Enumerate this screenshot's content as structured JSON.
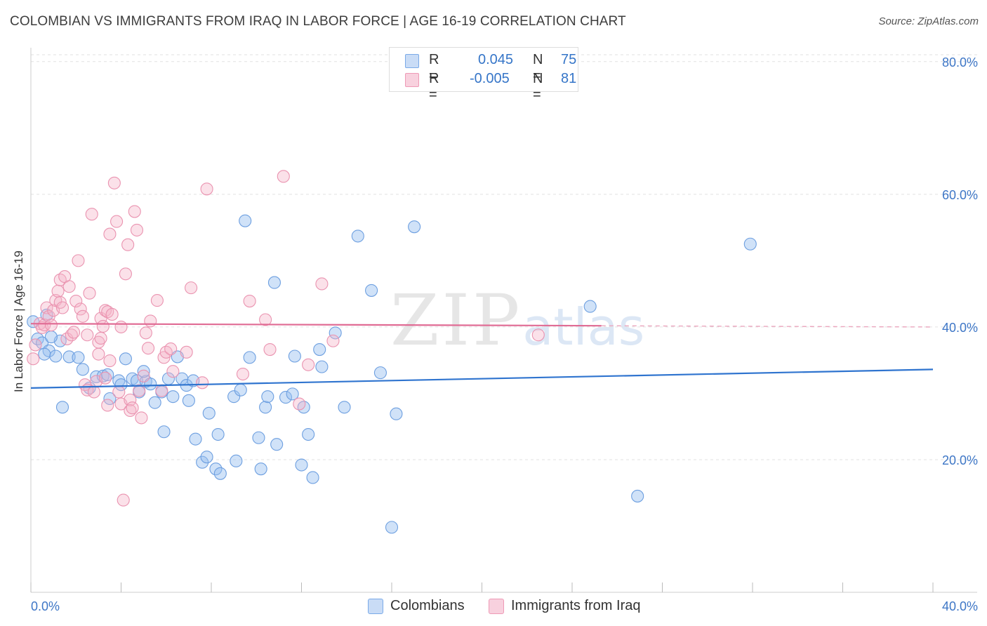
{
  "title": "COLOMBIAN VS IMMIGRANTS FROM IRAQ IN LABOR FORCE | AGE 16-19 CORRELATION CHART",
  "source": "Source: ZipAtlas.com",
  "watermark": {
    "zip": "ZIP",
    "atlas": "atlas"
  },
  "legend": {
    "r_label": "R =",
    "n_label": "N =",
    "rows": [
      {
        "series": "Colombians",
        "r": "0.045",
        "n": "75",
        "color": "#5b9be6"
      },
      {
        "series": "Immigrants from Iraq",
        "r": "-0.005",
        "n": "81",
        "color": "#ee8fae"
      }
    ]
  },
  "bottom_legend": [
    "Colombians",
    "Immigrants from Iraq"
  ],
  "chart_data": {
    "type": "scatter",
    "title": "COLOMBIAN VS IMMIGRANTS FROM IRAQ IN LABOR FORCE | AGE 16-19 CORRELATION CHART",
    "xlabel": "",
    "ylabel": "In Labor Force | Age 16-19",
    "xlim": [
      0,
      40
    ],
    "ylim": [
      0,
      84
    ],
    "x_tick_labels": [
      "0.0%",
      "40.0%"
    ],
    "y_ticks": [
      20,
      40,
      60,
      80
    ],
    "y_tick_labels": [
      "20.0%",
      "40.0%",
      "60.0%",
      "80.0%"
    ],
    "grid": true,
    "series": [
      {
        "name": "Colombians",
        "color": "#5b9be6",
        "r": 0.045,
        "n": 75,
        "trend": {
          "x": [
            0,
            40
          ],
          "y": [
            30.8,
            33.6
          ],
          "dashed_from": null
        },
        "points": [
          [
            0.1,
            40.8
          ],
          [
            0.3,
            38.2
          ],
          [
            0.5,
            37.6
          ],
          [
            0.8,
            36.4
          ],
          [
            0.6,
            35.9
          ],
          [
            1.1,
            35.6
          ],
          [
            1.3,
            37.9
          ],
          [
            1.7,
            35.5
          ],
          [
            2.1,
            35.4
          ],
          [
            1.4,
            27.9
          ],
          [
            2.3,
            33.6
          ],
          [
            2.6,
            30.8
          ],
          [
            2.9,
            32.5
          ],
          [
            3.2,
            32.6
          ],
          [
            3.4,
            32.8
          ],
          [
            3.5,
            29.2
          ],
          [
            3.9,
            31.9
          ],
          [
            4.0,
            31.3
          ],
          [
            4.2,
            35.2
          ],
          [
            4.5,
            32.2
          ],
          [
            4.7,
            31.9
          ],
          [
            4.8,
            30.2
          ],
          [
            5.1,
            31.8
          ],
          [
            5.0,
            33.3
          ],
          [
            5.3,
            31.4
          ],
          [
            5.5,
            28.6
          ],
          [
            5.8,
            30.2
          ],
          [
            5.9,
            24.2
          ],
          [
            6.1,
            32.2
          ],
          [
            6.3,
            29.5
          ],
          [
            6.5,
            35.5
          ],
          [
            6.7,
            32.2
          ],
          [
            6.9,
            31.2
          ],
          [
            7.0,
            28.9
          ],
          [
            7.2,
            31.9
          ],
          [
            7.3,
            23.1
          ],
          [
            7.6,
            19.6
          ],
          [
            7.8,
            20.4
          ],
          [
            7.9,
            27.0
          ],
          [
            8.2,
            18.6
          ],
          [
            8.3,
            23.8
          ],
          [
            8.4,
            17.9
          ],
          [
            9.0,
            29.5
          ],
          [
            9.1,
            19.8
          ],
          [
            9.3,
            30.5
          ],
          [
            9.5,
            56.0
          ],
          [
            9.7,
            35.4
          ],
          [
            10.1,
            23.3
          ],
          [
            10.2,
            18.6
          ],
          [
            10.4,
            27.9
          ],
          [
            10.5,
            29.5
          ],
          [
            10.8,
            46.7
          ],
          [
            10.9,
            22.3
          ],
          [
            11.3,
            29.4
          ],
          [
            11.6,
            29.9
          ],
          [
            11.7,
            35.6
          ],
          [
            12.0,
            19.2
          ],
          [
            12.1,
            27.9
          ],
          [
            12.3,
            23.8
          ],
          [
            12.5,
            17.3
          ],
          [
            12.8,
            36.6
          ],
          [
            12.9,
            34.0
          ],
          [
            13.5,
            39.1
          ],
          [
            13.9,
            27.9
          ],
          [
            14.5,
            53.7
          ],
          [
            15.1,
            45.5
          ],
          [
            15.5,
            33.1
          ],
          [
            16.0,
            9.8
          ],
          [
            16.2,
            26.9
          ],
          [
            17.0,
            55.1
          ],
          [
            24.8,
            43.1
          ],
          [
            26.9,
            14.5
          ],
          [
            31.9,
            52.5
          ],
          [
            0.7,
            41.8
          ],
          [
            0.9,
            38.5
          ]
        ]
      },
      {
        "name": "Immigrants from Iraq",
        "color": "#ee8fae",
        "r": -0.005,
        "n": 81,
        "trend": {
          "x": [
            0,
            40
          ],
          "y": [
            40.5,
            40.0
          ],
          "dashed_from": 25.3
        },
        "points": [
          [
            0.1,
            35.2
          ],
          [
            0.2,
            37.3
          ],
          [
            0.4,
            40.5
          ],
          [
            0.5,
            39.9
          ],
          [
            0.6,
            40.3
          ],
          [
            0.7,
            42.9
          ],
          [
            0.8,
            41.6
          ],
          [
            0.9,
            40.3
          ],
          [
            1.0,
            42.5
          ],
          [
            1.1,
            44.0
          ],
          [
            1.2,
            45.4
          ],
          [
            1.3,
            43.7
          ],
          [
            1.4,
            42.9
          ],
          [
            1.3,
            47.1
          ],
          [
            1.5,
            47.6
          ],
          [
            1.6,
            38.2
          ],
          [
            1.7,
            46.1
          ],
          [
            1.8,
            38.8
          ],
          [
            1.9,
            39.2
          ],
          [
            2.0,
            43.9
          ],
          [
            2.1,
            50.0
          ],
          [
            2.2,
            42.7
          ],
          [
            2.3,
            41.6
          ],
          [
            2.4,
            31.3
          ],
          [
            2.5,
            30.5
          ],
          [
            2.6,
            45.1
          ],
          [
            2.5,
            38.8
          ],
          [
            2.7,
            57.0
          ],
          [
            2.8,
            30.2
          ],
          [
            2.9,
            31.8
          ],
          [
            3.0,
            37.7
          ],
          [
            3.0,
            35.9
          ],
          [
            3.1,
            38.3
          ],
          [
            3.1,
            41.3
          ],
          [
            3.2,
            40.1
          ],
          [
            3.3,
            32.3
          ],
          [
            3.3,
            42.5
          ],
          [
            3.4,
            28.2
          ],
          [
            3.4,
            42.3
          ],
          [
            3.5,
            54.0
          ],
          [
            3.5,
            34.9
          ],
          [
            3.6,
            41.9
          ],
          [
            3.7,
            61.7
          ],
          [
            3.8,
            55.9
          ],
          [
            3.9,
            30.2
          ],
          [
            4.0,
            28.4
          ],
          [
            4.0,
            40.0
          ],
          [
            4.1,
            13.9
          ],
          [
            4.2,
            48.0
          ],
          [
            4.3,
            52.4
          ],
          [
            4.4,
            29.0
          ],
          [
            4.4,
            27.4
          ],
          [
            4.5,
            27.8
          ],
          [
            4.6,
            57.4
          ],
          [
            4.7,
            54.6
          ],
          [
            4.8,
            30.4
          ],
          [
            4.9,
            26.3
          ],
          [
            5.0,
            32.6
          ],
          [
            5.1,
            39.1
          ],
          [
            5.2,
            36.8
          ],
          [
            5.3,
            40.9
          ],
          [
            5.6,
            44.0
          ],
          [
            5.8,
            30.4
          ],
          [
            5.9,
            35.4
          ],
          [
            6.0,
            36.2
          ],
          [
            6.2,
            36.7
          ],
          [
            6.3,
            33.3
          ],
          [
            6.9,
            36.2
          ],
          [
            7.1,
            45.9
          ],
          [
            7.6,
            31.6
          ],
          [
            7.8,
            60.8
          ],
          [
            9.4,
            32.9
          ],
          [
            9.7,
            43.9
          ],
          [
            10.4,
            41.1
          ],
          [
            10.6,
            36.6
          ],
          [
            11.2,
            62.7
          ],
          [
            12.3,
            34.3
          ],
          [
            12.9,
            46.5
          ],
          [
            11.9,
            28.4
          ],
          [
            13.4,
            37.9
          ],
          [
            22.5,
            38.8
          ]
        ]
      }
    ]
  }
}
